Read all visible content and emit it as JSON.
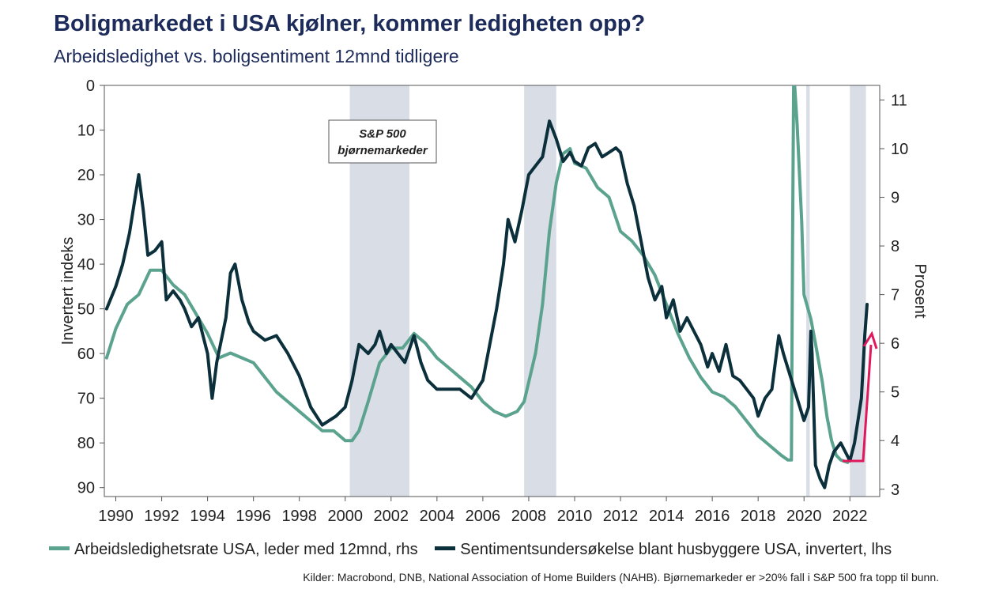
{
  "header": {
    "title": "Boligmarkedet i USA kjølner, kommer ledigheten opp?",
    "subtitle": "Arbeidsledighet vs. boligsentiment 12mnd tidligere"
  },
  "footer": {
    "source": "Kilder: Macrobond, DNB, National Association of Home Builders (NAHB). Bjørnemarkeder er >20% fall i S&P 500 fra topp til bunn."
  },
  "colors": {
    "unemployment": "#5ba38e",
    "sentiment": "#0b2f3b",
    "bear": "#d8dde6",
    "arrow": "#e0185c"
  },
  "chart_data": {
    "type": "line",
    "xlabel": "",
    "x_ticks": [
      "1990",
      "1992",
      "1994",
      "1996",
      "1998",
      "2000",
      "2002",
      "2004",
      "2006",
      "2008",
      "2010",
      "2012",
      "2014",
      "2016",
      "2018",
      "2020",
      "2022"
    ],
    "xlim": [
      1989.5,
      2023.3
    ],
    "y_left": {
      "label": "Invertert indeks",
      "inverted": true,
      "range": [
        0,
        92
      ],
      "ticks": [
        "0",
        "10",
        "20",
        "30",
        "40",
        "50",
        "60",
        "70",
        "80",
        "90"
      ]
    },
    "y_right": {
      "label": "Prosent",
      "range": [
        2.85,
        11.3
      ],
      "ticks": [
        "3",
        "4",
        "5",
        "6",
        "7",
        "8",
        "9",
        "10",
        "11"
      ]
    },
    "annotation": {
      "text_line1": "S&P 500",
      "text_line2": "bjørnemarkeder"
    },
    "bear_markets": [
      [
        2000.2,
        2002.8
      ],
      [
        2007.8,
        2009.2
      ],
      [
        2020.1,
        2020.25
      ],
      [
        2022.0,
        2022.7
      ]
    ],
    "series": [
      {
        "name": "Arbeidsledighetsrate USA, leder med 12mnd, rhs",
        "axis": "right",
        "points": [
          [
            1989.6,
            5.7
          ],
          [
            1990.0,
            6.3
          ],
          [
            1990.5,
            6.8
          ],
          [
            1991.0,
            7.0
          ],
          [
            1991.5,
            7.5
          ],
          [
            1992.0,
            7.5
          ],
          [
            1992.5,
            7.2
          ],
          [
            1993.0,
            7.0
          ],
          [
            1993.5,
            6.6
          ],
          [
            1994.0,
            6.2
          ],
          [
            1994.5,
            5.7
          ],
          [
            1995.0,
            5.8
          ],
          [
            1995.5,
            5.7
          ],
          [
            1996.0,
            5.6
          ],
          [
            1996.5,
            5.3
          ],
          [
            1997.0,
            5.0
          ],
          [
            1997.5,
            4.8
          ],
          [
            1998.0,
            4.6
          ],
          [
            1998.5,
            4.4
          ],
          [
            1999.0,
            4.2
          ],
          [
            1999.5,
            4.2
          ],
          [
            2000.0,
            4.0
          ],
          [
            2000.3,
            4.0
          ],
          [
            2000.6,
            4.2
          ],
          [
            2001.0,
            4.8
          ],
          [
            2001.5,
            5.6
          ],
          [
            2002.0,
            5.9
          ],
          [
            2002.5,
            5.9
          ],
          [
            2003.0,
            6.2
          ],
          [
            2003.5,
            6.0
          ],
          [
            2004.0,
            5.7
          ],
          [
            2004.5,
            5.5
          ],
          [
            2005.0,
            5.3
          ],
          [
            2005.5,
            5.1
          ],
          [
            2006.0,
            4.8
          ],
          [
            2006.5,
            4.6
          ],
          [
            2007.0,
            4.5
          ],
          [
            2007.5,
            4.6
          ],
          [
            2007.8,
            4.8
          ],
          [
            2008.0,
            5.2
          ],
          [
            2008.3,
            5.8
          ],
          [
            2008.6,
            6.8
          ],
          [
            2008.9,
            8.3
          ],
          [
            2009.2,
            9.3
          ],
          [
            2009.5,
            9.9
          ],
          [
            2009.8,
            10.0
          ],
          [
            2010.0,
            9.7
          ],
          [
            2010.5,
            9.6
          ],
          [
            2011.0,
            9.2
          ],
          [
            2011.5,
            9.0
          ],
          [
            2012.0,
            8.3
          ],
          [
            2012.5,
            8.1
          ],
          [
            2013.0,
            7.8
          ],
          [
            2013.5,
            7.4
          ],
          [
            2014.0,
            6.8
          ],
          [
            2014.5,
            6.2
          ],
          [
            2015.0,
            5.7
          ],
          [
            2015.5,
            5.3
          ],
          [
            2016.0,
            5.0
          ],
          [
            2016.5,
            4.9
          ],
          [
            2017.0,
            4.7
          ],
          [
            2017.5,
            4.4
          ],
          [
            2018.0,
            4.1
          ],
          [
            2018.5,
            3.9
          ],
          [
            2019.0,
            3.7
          ],
          [
            2019.3,
            3.6
          ],
          [
            2019.45,
            3.6
          ],
          [
            2019.5,
            8.0
          ],
          [
            2019.55,
            11.6
          ],
          [
            2019.7,
            10.5
          ],
          [
            2019.9,
            8.5
          ],
          [
            2020.0,
            7.0
          ],
          [
            2020.3,
            6.5
          ],
          [
            2020.5,
            6.0
          ],
          [
            2020.8,
            5.2
          ],
          [
            2021.0,
            4.5
          ],
          [
            2021.2,
            4.0
          ],
          [
            2021.4,
            3.7
          ],
          [
            2021.6,
            3.6
          ],
          [
            2021.9,
            3.55
          ]
        ]
      },
      {
        "name": "Sentimentsundersøkelse blant husbyggere USA, invertert, lhs",
        "axis": "left",
        "points": [
          [
            1989.6,
            50
          ],
          [
            1990.0,
            45
          ],
          [
            1990.3,
            40
          ],
          [
            1990.6,
            33
          ],
          [
            1991.0,
            20
          ],
          [
            1991.2,
            28
          ],
          [
            1991.4,
            38
          ],
          [
            1991.7,
            37
          ],
          [
            1992.0,
            35
          ],
          [
            1992.2,
            48
          ],
          [
            1992.5,
            46
          ],
          [
            1992.8,
            48
          ],
          [
            1993.0,
            50
          ],
          [
            1993.3,
            54
          ],
          [
            1993.6,
            52
          ],
          [
            1994.0,
            60
          ],
          [
            1994.2,
            70
          ],
          [
            1994.4,
            62
          ],
          [
            1994.8,
            52
          ],
          [
            1995.0,
            42
          ],
          [
            1995.2,
            40
          ],
          [
            1995.5,
            48
          ],
          [
            1995.8,
            53
          ],
          [
            1996.0,
            55
          ],
          [
            1996.5,
            57
          ],
          [
            1997.0,
            56
          ],
          [
            1997.5,
            60
          ],
          [
            1998.0,
            65
          ],
          [
            1998.5,
            72
          ],
          [
            1999.0,
            76
          ],
          [
            1999.3,
            75
          ],
          [
            1999.6,
            74
          ],
          [
            2000.0,
            72
          ],
          [
            2000.3,
            66
          ],
          [
            2000.6,
            58
          ],
          [
            2001.0,
            60
          ],
          [
            2001.3,
            58
          ],
          [
            2001.5,
            55
          ],
          [
            2001.8,
            60
          ],
          [
            2002.0,
            58
          ],
          [
            2002.3,
            60
          ],
          [
            2002.6,
            62
          ],
          [
            2003.0,
            56
          ],
          [
            2003.3,
            62
          ],
          [
            2003.6,
            66
          ],
          [
            2004.0,
            68
          ],
          [
            2004.5,
            68
          ],
          [
            2005.0,
            68
          ],
          [
            2005.5,
            70
          ],
          [
            2006.0,
            66
          ],
          [
            2006.3,
            58
          ],
          [
            2006.6,
            50
          ],
          [
            2006.9,
            40
          ],
          [
            2007.1,
            30
          ],
          [
            2007.4,
            35
          ],
          [
            2007.7,
            28
          ],
          [
            2008.0,
            20
          ],
          [
            2008.3,
            18
          ],
          [
            2008.6,
            16
          ],
          [
            2008.9,
            8
          ],
          [
            2009.2,
            12
          ],
          [
            2009.5,
            17
          ],
          [
            2009.8,
            15
          ],
          [
            2010.0,
            17
          ],
          [
            2010.3,
            18
          ],
          [
            2010.6,
            14
          ],
          [
            2010.9,
            13
          ],
          [
            2011.2,
            16
          ],
          [
            2011.5,
            15
          ],
          [
            2011.8,
            14
          ],
          [
            2012.0,
            15
          ],
          [
            2012.3,
            22
          ],
          [
            2012.6,
            27
          ],
          [
            2012.9,
            35
          ],
          [
            2013.2,
            43
          ],
          [
            2013.5,
            48
          ],
          [
            2013.8,
            45
          ],
          [
            2014.0,
            52
          ],
          [
            2014.3,
            48
          ],
          [
            2014.6,
            55
          ],
          [
            2014.9,
            52
          ],
          [
            2015.2,
            55
          ],
          [
            2015.5,
            58
          ],
          [
            2015.8,
            63
          ],
          [
            2016.0,
            60
          ],
          [
            2016.3,
            64
          ],
          [
            2016.6,
            58
          ],
          [
            2016.9,
            65
          ],
          [
            2017.2,
            66
          ],
          [
            2017.5,
            68
          ],
          [
            2017.8,
            70
          ],
          [
            2018.0,
            74
          ],
          [
            2018.3,
            70
          ],
          [
            2018.6,
            68
          ],
          [
            2018.9,
            56
          ],
          [
            2019.1,
            60
          ],
          [
            2019.4,
            65
          ],
          [
            2019.7,
            70
          ],
          [
            2020.0,
            75
          ],
          [
            2020.2,
            72
          ],
          [
            2020.3,
            55
          ],
          [
            2020.35,
            60
          ],
          [
            2020.5,
            85
          ],
          [
            2020.7,
            88
          ],
          [
            2020.9,
            90
          ],
          [
            2021.1,
            85
          ],
          [
            2021.3,
            82
          ],
          [
            2021.6,
            80
          ],
          [
            2021.8,
            82
          ],
          [
            2022.0,
            84
          ],
          [
            2022.2,
            80
          ],
          [
            2022.5,
            70
          ],
          [
            2022.65,
            56
          ],
          [
            2022.75,
            49
          ]
        ]
      }
    ]
  },
  "legend": {
    "unemployment": "Arbeidsledighetsrate USA, leder med 12mnd, rhs",
    "sentiment": "Sentimentsundersøkelse blant husbyggere USA, invertert, lhs"
  }
}
